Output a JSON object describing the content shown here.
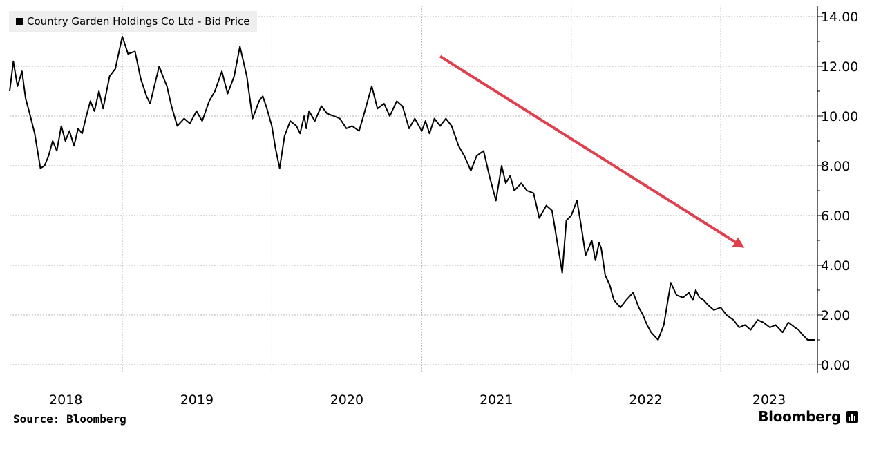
{
  "legend": {
    "label": "Country Garden Holdings Co Ltd - Bid Price"
  },
  "footer": {
    "source": "Source: Bloomberg",
    "brand": "Bloomberg"
  },
  "colors": {
    "line": "#000000",
    "arrow": "#e0404e",
    "grid": "#b5b5b5",
    "legend_bg": "#eeeeee"
  },
  "chart_data": {
    "type": "line",
    "title": "",
    "xlabel": "",
    "ylabel": "",
    "y_ticks": [
      "0.00",
      "2.00",
      "4.00",
      "6.00",
      "8.00",
      "10.00",
      "12.00",
      "14.00"
    ],
    "ylim": [
      0,
      14
    ],
    "x_ticks": [
      "2018",
      "2019",
      "2020",
      "2021",
      "2022",
      "2023"
    ],
    "xlim": [
      "2018-04-01",
      "2023-08-25"
    ],
    "grid": true,
    "legend_position": "top-left",
    "annotations": [
      {
        "type": "arrow",
        "from": [
          "2021-02-15",
          12.4
        ],
        "to": [
          "2023-02-28",
          4.7
        ],
        "color": "#e0404e"
      }
    ],
    "series": [
      {
        "name": "Country Garden Holdings Co Ltd - Bid Price",
        "x": [
          "2018-04-01",
          "2018-04-10",
          "2018-04-20",
          "2018-05-01",
          "2018-05-10",
          "2018-05-20",
          "2018-06-01",
          "2018-06-15",
          "2018-06-25",
          "2018-07-05",
          "2018-07-15",
          "2018-07-25",
          "2018-08-05",
          "2018-08-15",
          "2018-08-25",
          "2018-09-05",
          "2018-09-15",
          "2018-09-25",
          "2018-10-05",
          "2018-10-15",
          "2018-10-25",
          "2018-11-05",
          "2018-11-15",
          "2018-12-01",
          "2018-12-15",
          "2019-01-01",
          "2019-01-15",
          "2019-02-01",
          "2019-02-15",
          "2019-03-01",
          "2019-03-10",
          "2019-03-20",
          "2019-04-01",
          "2019-04-10",
          "2019-04-20",
          "2019-05-01",
          "2019-05-15",
          "2019-06-01",
          "2019-06-15",
          "2019-07-01",
          "2019-07-15",
          "2019-08-01",
          "2019-08-15",
          "2019-09-01",
          "2019-09-15",
          "2019-10-01",
          "2019-10-15",
          "2019-11-01",
          "2019-11-15",
          "2019-12-01",
          "2019-12-10",
          "2019-12-20",
          "2020-01-01",
          "2020-01-10",
          "2020-01-20",
          "2020-02-01",
          "2020-02-15",
          "2020-03-01",
          "2020-03-10",
          "2020-03-20",
          "2020-03-25",
          "2020-04-01",
          "2020-04-15",
          "2020-05-01",
          "2020-05-15",
          "2020-06-01",
          "2020-06-15",
          "2020-07-01",
          "2020-07-15",
          "2020-08-01",
          "2020-08-15",
          "2020-09-01",
          "2020-09-15",
          "2020-10-01",
          "2020-10-15",
          "2020-11-01",
          "2020-11-15",
          "2020-12-01",
          "2020-12-15",
          "2021-01-01",
          "2021-01-10",
          "2021-01-20",
          "2021-02-01",
          "2021-02-15",
          "2021-03-01",
          "2021-03-15",
          "2021-04-01",
          "2021-04-15",
          "2021-05-01",
          "2021-05-15",
          "2021-06-01",
          "2021-06-15",
          "2021-07-01",
          "2021-07-15",
          "2021-07-25",
          "2021-08-05",
          "2021-08-15",
          "2021-09-01",
          "2021-09-15",
          "2021-10-01",
          "2021-10-15",
          "2021-11-01",
          "2021-11-15",
          "2021-12-01",
          "2021-12-10",
          "2021-12-20",
          "2022-01-01",
          "2022-01-15",
          "2022-01-25",
          "2022-02-05",
          "2022-02-20",
          "2022-03-01",
          "2022-03-10",
          "2022-03-15",
          "2022-03-25",
          "2022-04-05",
          "2022-04-15",
          "2022-05-01",
          "2022-05-15",
          "2022-06-01",
          "2022-06-15",
          "2022-06-25",
          "2022-07-05",
          "2022-07-15",
          "2022-08-01",
          "2022-08-15",
          "2022-09-01",
          "2022-09-15",
          "2022-10-01",
          "2022-10-15",
          "2022-10-25",
          "2022-11-01",
          "2022-11-10",
          "2022-11-20",
          "2022-12-01",
          "2022-12-15",
          "2023-01-01",
          "2023-01-15",
          "2023-02-01",
          "2023-02-15",
          "2023-03-01",
          "2023-03-15",
          "2023-04-01",
          "2023-04-15",
          "2023-05-01",
          "2023-05-15",
          "2023-06-01",
          "2023-06-15",
          "2023-07-01",
          "2023-07-10",
          "2023-07-20",
          "2023-08-01",
          "2023-08-10",
          "2023-08-20"
        ],
        "values": [
          11.0,
          12.2,
          11.2,
          11.8,
          10.7,
          10.1,
          9.3,
          7.9,
          8.0,
          8.4,
          9.0,
          8.6,
          9.6,
          9.0,
          9.4,
          8.8,
          9.5,
          9.3,
          10.0,
          10.6,
          10.2,
          11.0,
          10.3,
          11.6,
          11.9,
          13.2,
          12.5,
          12.6,
          11.5,
          10.8,
          10.5,
          11.2,
          12.0,
          11.6,
          11.2,
          10.4,
          9.6,
          9.9,
          9.7,
          10.2,
          9.8,
          10.6,
          11.0,
          11.8,
          10.9,
          11.6,
          12.8,
          11.6,
          9.9,
          10.6,
          10.8,
          10.3,
          9.6,
          8.7,
          7.9,
          9.2,
          9.8,
          9.6,
          9.3,
          10.0,
          9.5,
          10.2,
          9.8,
          10.4,
          10.1,
          10.0,
          9.9,
          9.5,
          9.6,
          9.4,
          10.2,
          11.2,
          10.3,
          10.5,
          10.0,
          10.6,
          10.4,
          9.5,
          9.9,
          9.4,
          9.8,
          9.3,
          9.9,
          9.6,
          9.9,
          9.6,
          8.8,
          8.4,
          7.8,
          8.4,
          8.6,
          7.6,
          6.6,
          8.0,
          7.3,
          7.6,
          7.0,
          7.3,
          7.0,
          6.9,
          5.9,
          6.4,
          6.2,
          4.6,
          3.7,
          5.8,
          6.0,
          6.6,
          5.6,
          4.4,
          5.0,
          4.2,
          4.9,
          4.7,
          3.6,
          3.2,
          2.6,
          2.3,
          2.6,
          2.9,
          2.3,
          2.0,
          1.6,
          1.3,
          1.0,
          1.6,
          3.3,
          2.8,
          2.7,
          2.9,
          2.6,
          3.0,
          2.7,
          2.6,
          2.4,
          2.2,
          2.3,
          2.0,
          1.8,
          1.5,
          1.6,
          1.4,
          1.8,
          1.7,
          1.5,
          1.6,
          1.3,
          1.7,
          1.5,
          1.4,
          1.2,
          1.0,
          1.0,
          1.0
        ]
      }
    ]
  }
}
